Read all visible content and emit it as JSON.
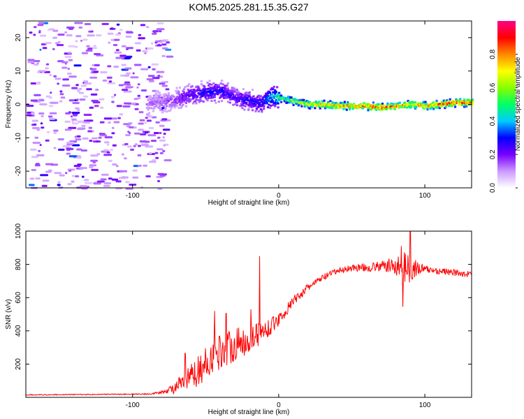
{
  "title": "KOM5.2025.281.15.35.G27",
  "chart_data": [
    {
      "type": "heatmap",
      "title": "KOM5.2025.281.15.35.G27",
      "xlabel": "Height of straight line (km)",
      "ylabel": "Frequency (Hz)",
      "xlim": [
        -173,
        132
      ],
      "ylim": [
        -25,
        25
      ],
      "xticks": [
        -100,
        0,
        100
      ],
      "yticks": [
        -20,
        -10,
        0,
        10,
        20
      ],
      "ridge": {
        "x": [
          -90,
          -80,
          -70,
          -60,
          -50,
          -40,
          -30,
          -20,
          -15,
          -10,
          -5,
          0,
          10,
          20,
          30,
          40,
          50,
          60,
          70,
          80,
          90,
          100,
          110,
          120,
          130
        ],
        "freq": [
          0.5,
          0.5,
          1.5,
          3,
          3.5,
          4,
          2,
          1,
          0.3,
          1,
          2.5,
          2,
          1,
          0,
          0,
          -0.5,
          -0.5,
          -0.5,
          -1,
          -0.5,
          0,
          -0.5,
          0,
          0.5,
          0.5
        ],
        "amplitude": [
          0.15,
          0.15,
          0.2,
          0.25,
          0.3,
          0.3,
          0.25,
          0.3,
          0.3,
          0.35,
          0.45,
          0.55,
          0.65,
          0.75,
          0.8,
          0.85,
          0.85,
          0.9,
          0.95,
          0.85,
          0.8,
          0.85,
          0.9,
          0.95,
          0.9
        ]
      },
      "noise_region_x": [
        -173,
        -85
      ],
      "noise_amplitude": [
        0.05,
        0.2
      ],
      "colorbar": {
        "label": "Normalized spectral amplitude",
        "range": [
          0,
          1
        ],
        "ticks": [
          "0.0",
          "0.2",
          "0.4",
          "0.6",
          "0.8"
        ],
        "colors": [
          "#ffffff",
          "#cc99ff",
          "#7700ff",
          "#0000ff",
          "#00ccff",
          "#00ff66",
          "#88ff00",
          "#ffff00",
          "#ff8800",
          "#ff0000",
          "#ff0088"
        ]
      }
    },
    {
      "type": "line",
      "xlabel": "Height of straight line (km)",
      "ylabel": "SNR (v/v)",
      "xlim": [
        -173,
        132
      ],
      "ylim": [
        0,
        1000
      ],
      "xticks": [
        -100,
        0,
        100
      ],
      "yticks": [
        200,
        400,
        600,
        800,
        1000
      ],
      "series": [
        {
          "name": "SNR",
          "color": "#ff0000",
          "x": [
            -173,
            -120,
            -90,
            -80,
            -75,
            -70,
            -65,
            -60,
            -55,
            -50,
            -45,
            -40,
            -35,
            -30,
            -25,
            -20,
            -15,
            -10,
            -5,
            0,
            5,
            10,
            15,
            20,
            25,
            30,
            35,
            40,
            45,
            50,
            60,
            70,
            80,
            85,
            90,
            95,
            100,
            110,
            120,
            132
          ],
          "y": [
            15,
            18,
            20,
            30,
            45,
            60,
            90,
            120,
            160,
            200,
            250,
            280,
            300,
            320,
            330,
            350,
            380,
            400,
            430,
            470,
            520,
            580,
            620,
            660,
            690,
            720,
            740,
            760,
            770,
            780,
            780,
            790,
            790,
            785,
            780,
            775,
            770,
            760,
            750,
            740
          ],
          "noise": [
            3,
            3,
            4,
            8,
            20,
            40,
            60,
            80,
            90,
            100,
            110,
            110,
            110,
            100,
            90,
            90,
            80,
            60,
            50,
            40,
            35,
            30,
            25,
            22,
            20,
            20,
            20,
            20,
            20,
            20,
            25,
            30,
            60,
            90,
            90,
            50,
            25,
            20,
            20,
            20
          ],
          "spikes": [
            {
              "x": -64,
              "y": 265
            },
            {
              "x": -44,
              "y": 520
            },
            {
              "x": -36,
              "y": 505
            },
            {
              "x": -19,
              "y": 530
            },
            {
              "x": -13,
              "y": 850
            },
            {
              "x": 90,
              "y": 1000
            },
            {
              "x": 84,
              "y": 910
            },
            {
              "x": 85,
              "y": 545
            }
          ]
        }
      ]
    }
  ]
}
